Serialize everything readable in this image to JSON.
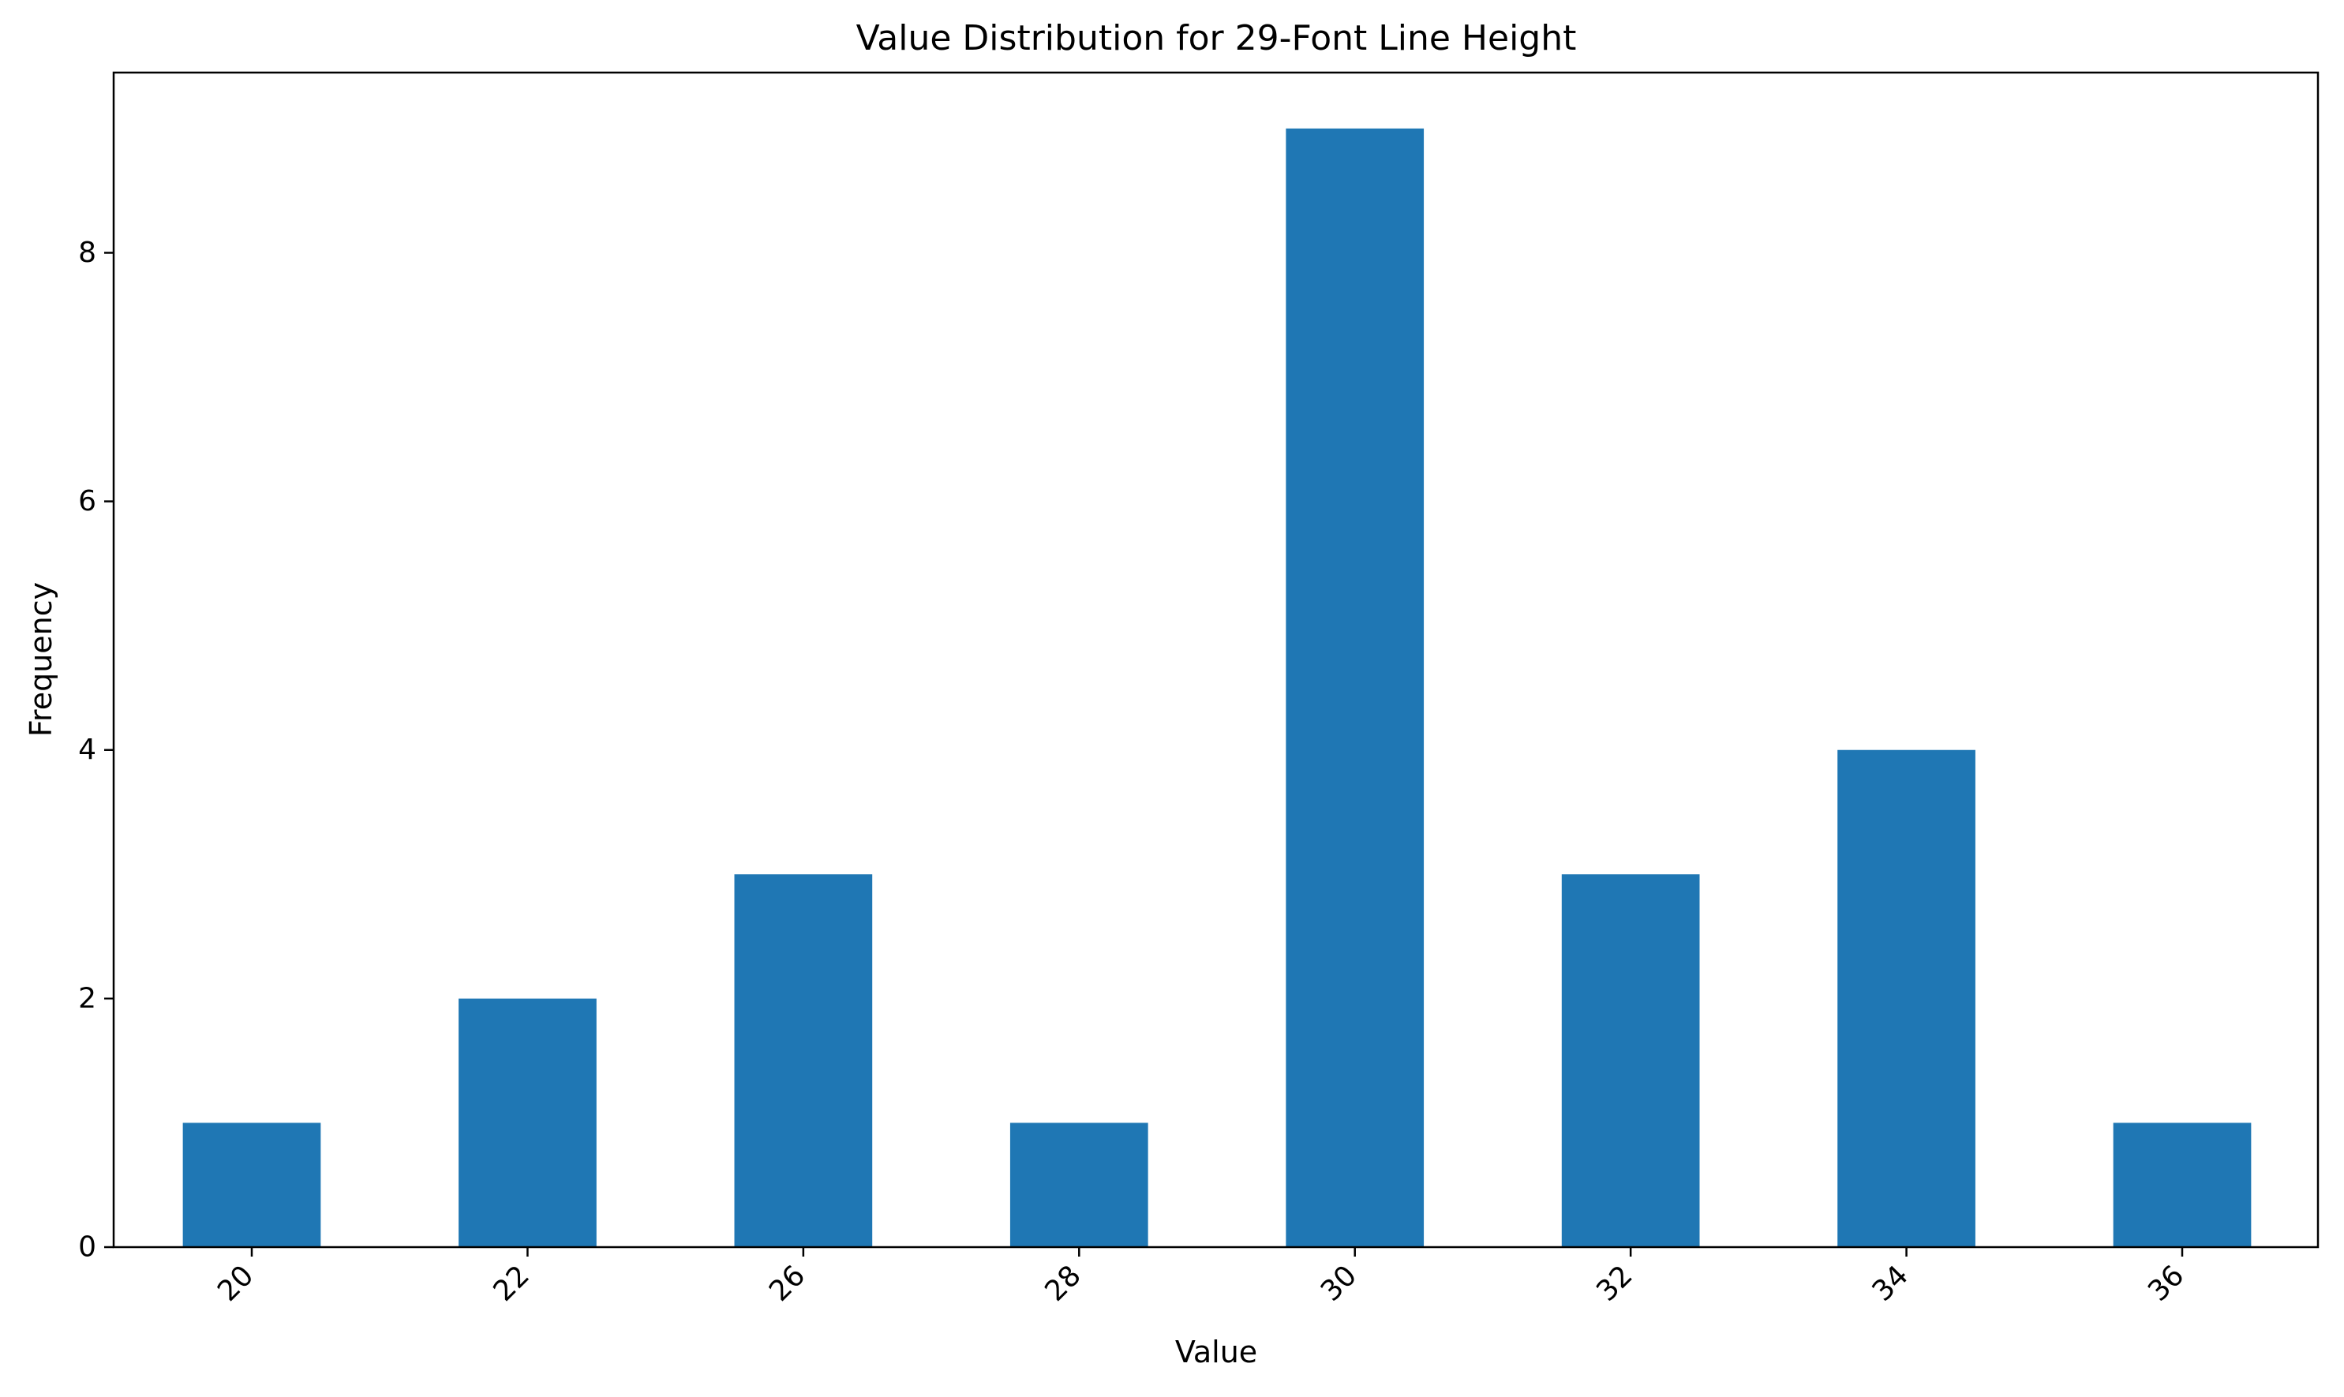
{
  "chart_data": {
    "type": "bar",
    "title": "Value Distribution for 29-Font Line Height",
    "xlabel": "Value",
    "ylabel": "Frequency",
    "categories": [
      "20",
      "22",
      "26",
      "28",
      "30",
      "32",
      "34",
      "36"
    ],
    "values": [
      1,
      2,
      3,
      1,
      9,
      3,
      4,
      1
    ],
    "ylim": [
      0,
      9.45
    ],
    "yticks": [
      0,
      2,
      4,
      6,
      8
    ],
    "bar_color": "#1f77b4",
    "grid": false,
    "legend": "none"
  }
}
